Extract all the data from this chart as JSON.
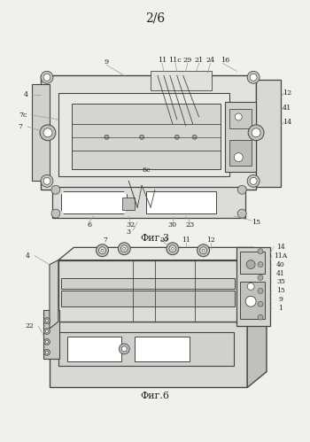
{
  "page_label": "2/6",
  "fig3_caption": "Фиг.3",
  "fig6_caption": "Фиг.6",
  "bg_color": "#f0f0ec",
  "line_color": "#444444",
  "dark_line": "#222222",
  "light_line": "#777777",
  "thin_line": "#999999"
}
